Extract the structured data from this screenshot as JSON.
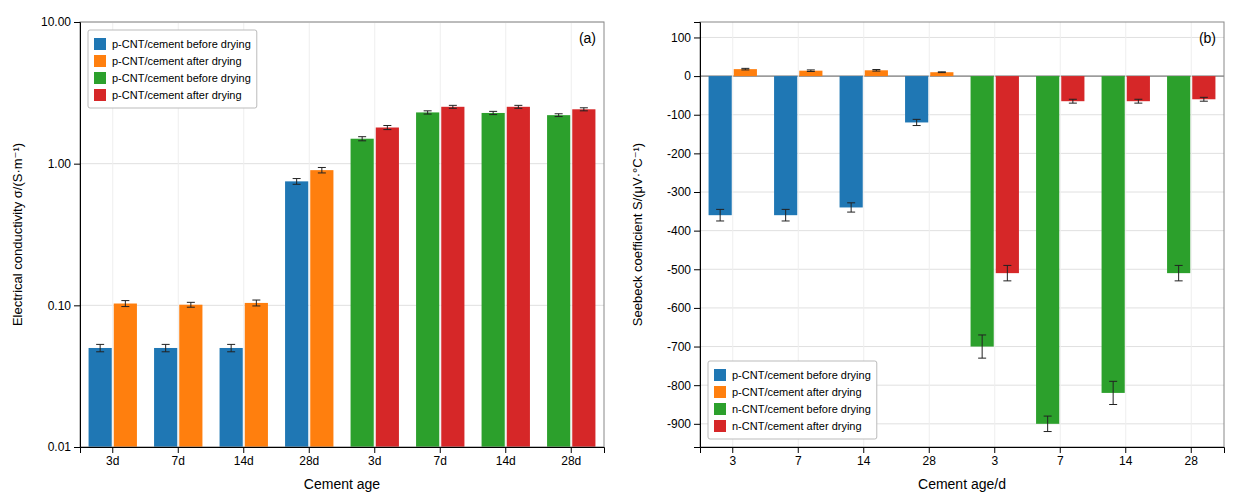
{
  "chart_data": [
    {
      "type": "bar",
      "x_label": "Cement age",
      "y_label": "Electrical conductivity σ/(S·m⁻¹)",
      "annotations": [
        "(a)"
      ],
      "categories": [
        "3d",
        "7d",
        "14d",
        "28d",
        "3d",
        "7d",
        "14d",
        "28d"
      ],
      "series": [
        {
          "name": "p-CNT/cement before drying",
          "values": [
            0.05,
            0.05,
            0.05,
            0.75,
            null,
            null,
            null,
            null
          ],
          "errors": [
            0.003,
            0.003,
            0.003,
            0.035,
            null,
            null,
            null,
            null
          ]
        },
        {
          "name": "p-CNT/cement after drying",
          "values": [
            0.103,
            0.101,
            0.104,
            0.9,
            null,
            null,
            null,
            null
          ],
          "errors": [
            0.005,
            0.004,
            0.005,
            0.04,
            null,
            null,
            null,
            null
          ]
        },
        {
          "name": "p-CNT/cement before drying",
          "values": [
            null,
            null,
            null,
            null,
            1.5,
            2.3,
            2.28,
            2.2
          ],
          "errors": [
            null,
            null,
            null,
            null,
            0.05,
            0.06,
            0.06,
            0.05
          ]
        },
        {
          "name": "p-CNT/cement after drying",
          "values": [
            null,
            null,
            null,
            null,
            1.8,
            2.52,
            2.52,
            2.42
          ],
          "errors": [
            null,
            null,
            null,
            null,
            0.06,
            0.06,
            0.06,
            0.06
          ]
        }
      ],
      "log": "y",
      "ylim": [
        0.01,
        10.0
      ],
      "yticks": [
        0.01,
        {
          "value": 0.1,
          "label": "0.10"
        },
        {
          "value": 1,
          "label": "1.00"
        },
        {
          "value": 10,
          "label": "10.00"
        }
      ],
      "grid": true,
      "legend": "upper left"
    },
    {
      "type": "bar",
      "x_label": "Cement age/d",
      "y_label": "Seebeck coefficient S/(μV·°C⁻¹)",
      "annotations": [
        "(b)"
      ],
      "categories": [
        "3",
        "7",
        "14",
        "28",
        "3",
        "7",
        "14",
        "28"
      ],
      "series": [
        {
          "name": "p-CNT/cement before drying",
          "values": [
            -360,
            -360,
            -340,
            -120,
            null,
            null,
            null,
            null
          ],
          "errors": [
            15,
            15,
            12,
            8,
            null,
            null,
            null,
            null
          ]
        },
        {
          "name": "p-CNT/cement after drying",
          "values": [
            18,
            14,
            15,
            10,
            null,
            null,
            null,
            null
          ],
          "errors": [
            2,
            2,
            2,
            1,
            null,
            null,
            null,
            null
          ]
        },
        {
          "name": "n-CNT/cement before drying",
          "values": [
            null,
            null,
            null,
            null,
            -700,
            -900,
            -820,
            -510
          ],
          "errors": [
            null,
            null,
            null,
            null,
            30,
            20,
            30,
            20
          ]
        },
        {
          "name": "n-CNT/cement after drying",
          "values": [
            null,
            null,
            null,
            null,
            -510,
            -65,
            -65,
            -60
          ],
          "errors": [
            null,
            null,
            null,
            null,
            20,
            5,
            5,
            5
          ]
        }
      ],
      "ylim": [
        -960,
        140
      ],
      "yticks": [
        100,
        0,
        -100,
        -200,
        -300,
        -400,
        -500,
        -600,
        -700,
        -800,
        -900
      ],
      "grid": true,
      "legend": "lower left"
    }
  ]
}
